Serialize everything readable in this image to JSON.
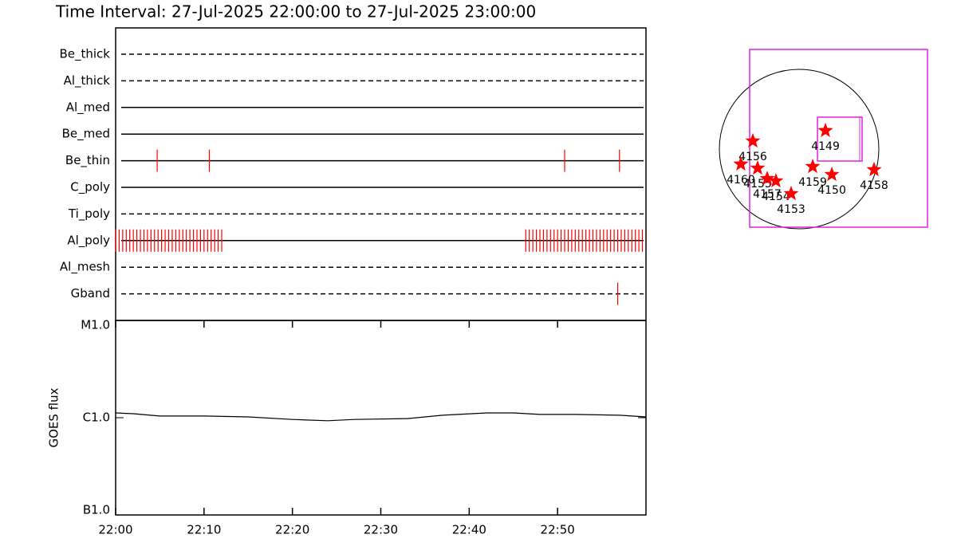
{
  "chart_data": [
    {
      "type": "timeline",
      "title": "Time Interval: 27-Jul-2025 22:00:00 to 27-Jul-2025 23:00:00",
      "color": "#ff0000",
      "xlim": [
        0,
        60
      ],
      "rows": [
        {
          "name": "Be_thick",
          "line_style": "dashed",
          "events": []
        },
        {
          "name": "Al_thick",
          "line_style": "dashed",
          "events": []
        },
        {
          "name": "Al_med",
          "line_style": "solid",
          "events": []
        },
        {
          "name": "Be_med",
          "line_style": "solid",
          "events": []
        },
        {
          "name": "Be_thin",
          "line_style": "solid",
          "events": [
            4.7,
            10.6,
            50.8,
            57.0
          ]
        },
        {
          "name": "C_poly",
          "line_style": "solid",
          "events": []
        },
        {
          "name": "Ti_poly",
          "line_style": "dashed",
          "events": []
        },
        {
          "name": "Al_poly",
          "line_style": "solid",
          "events": [
            0.0,
            0.4,
            0.8,
            1.2,
            1.6,
            2.0,
            2.4,
            2.8,
            3.2,
            3.6,
            4.0,
            4.4,
            4.8,
            5.2,
            5.6,
            6.0,
            6.4,
            6.8,
            7.2,
            7.6,
            8.0,
            8.4,
            8.8,
            9.2,
            9.6,
            10.0,
            10.4,
            10.8,
            11.2,
            11.6,
            12.0,
            46.4,
            46.8,
            47.2,
            47.6,
            48.0,
            48.4,
            48.8,
            49.2,
            49.6,
            50.0,
            50.4,
            50.8,
            51.2,
            51.6,
            52.0,
            52.4,
            52.8,
            53.2,
            53.6,
            54.0,
            54.4,
            54.8,
            55.2,
            55.6,
            56.0,
            56.4,
            56.8,
            57.2,
            57.6,
            58.0,
            58.4,
            58.8,
            59.2,
            59.6
          ]
        },
        {
          "name": "Al_mesh",
          "line_style": "dashed",
          "events": []
        },
        {
          "name": "Gband",
          "line_style": "dashed",
          "events": [
            56.8
          ]
        }
      ]
    },
    {
      "type": "line",
      "ylabel": "GOES flux",
      "log_scale": true,
      "color": "#000000",
      "x": [
        0,
        2,
        5,
        10,
        15,
        20,
        24,
        27,
        33,
        37,
        42,
        45,
        48,
        52,
        57,
        60
      ],
      "values": [
        1.12e-06,
        1.1e-06,
        1.04e-06,
        1.04e-06,
        1.02e-06,
        9.6e-07,
        9.3e-07,
        9.6e-07,
        9.8e-07,
        1.06e-06,
        1.12e-06,
        1.12e-06,
        1.08e-06,
        1.08e-06,
        1.06e-06,
        1.02e-06
      ],
      "xlim": [
        0,
        60
      ],
      "xticks": [
        {
          "value": 0,
          "label": "22:00"
        },
        {
          "value": 10,
          "label": "22:10"
        },
        {
          "value": 20,
          "label": "22:20"
        },
        {
          "value": 30,
          "label": "22:30"
        },
        {
          "value": 40,
          "label": "22:40"
        },
        {
          "value": 50,
          "label": "22:50"
        }
      ],
      "ylim": [
        1e-07,
        1e-05
      ],
      "yticks": [
        {
          "value": 1e-07,
          "label": "B1.0"
        },
        {
          "value": 1e-06,
          "label": "C1.0"
        },
        {
          "value": 1e-05,
          "label": "M1.0"
        }
      ]
    },
    {
      "type": "map",
      "color": "#ff0000",
      "regions": [
        {
          "name": "4156",
          "x": -551,
          "y": 95
        },
        {
          "name": "4160",
          "x": -694,
          "y": -180
        },
        {
          "name": "4155",
          "x": -494,
          "y": -228
        },
        {
          "name": "4157",
          "x": -380,
          "y": -352
        },
        {
          "name": "4154",
          "x": -276,
          "y": -380
        },
        {
          "name": "4153",
          "x": -95,
          "y": -532
        },
        {
          "name": "4159",
          "x": 162,
          "y": -209
        },
        {
          "name": "4150",
          "x": 390,
          "y": -304
        },
        {
          "name": "4158",
          "x": 893,
          "y": -247
        },
        {
          "name": "4149",
          "x": 314,
          "y": 219
        }
      ]
    }
  ]
}
